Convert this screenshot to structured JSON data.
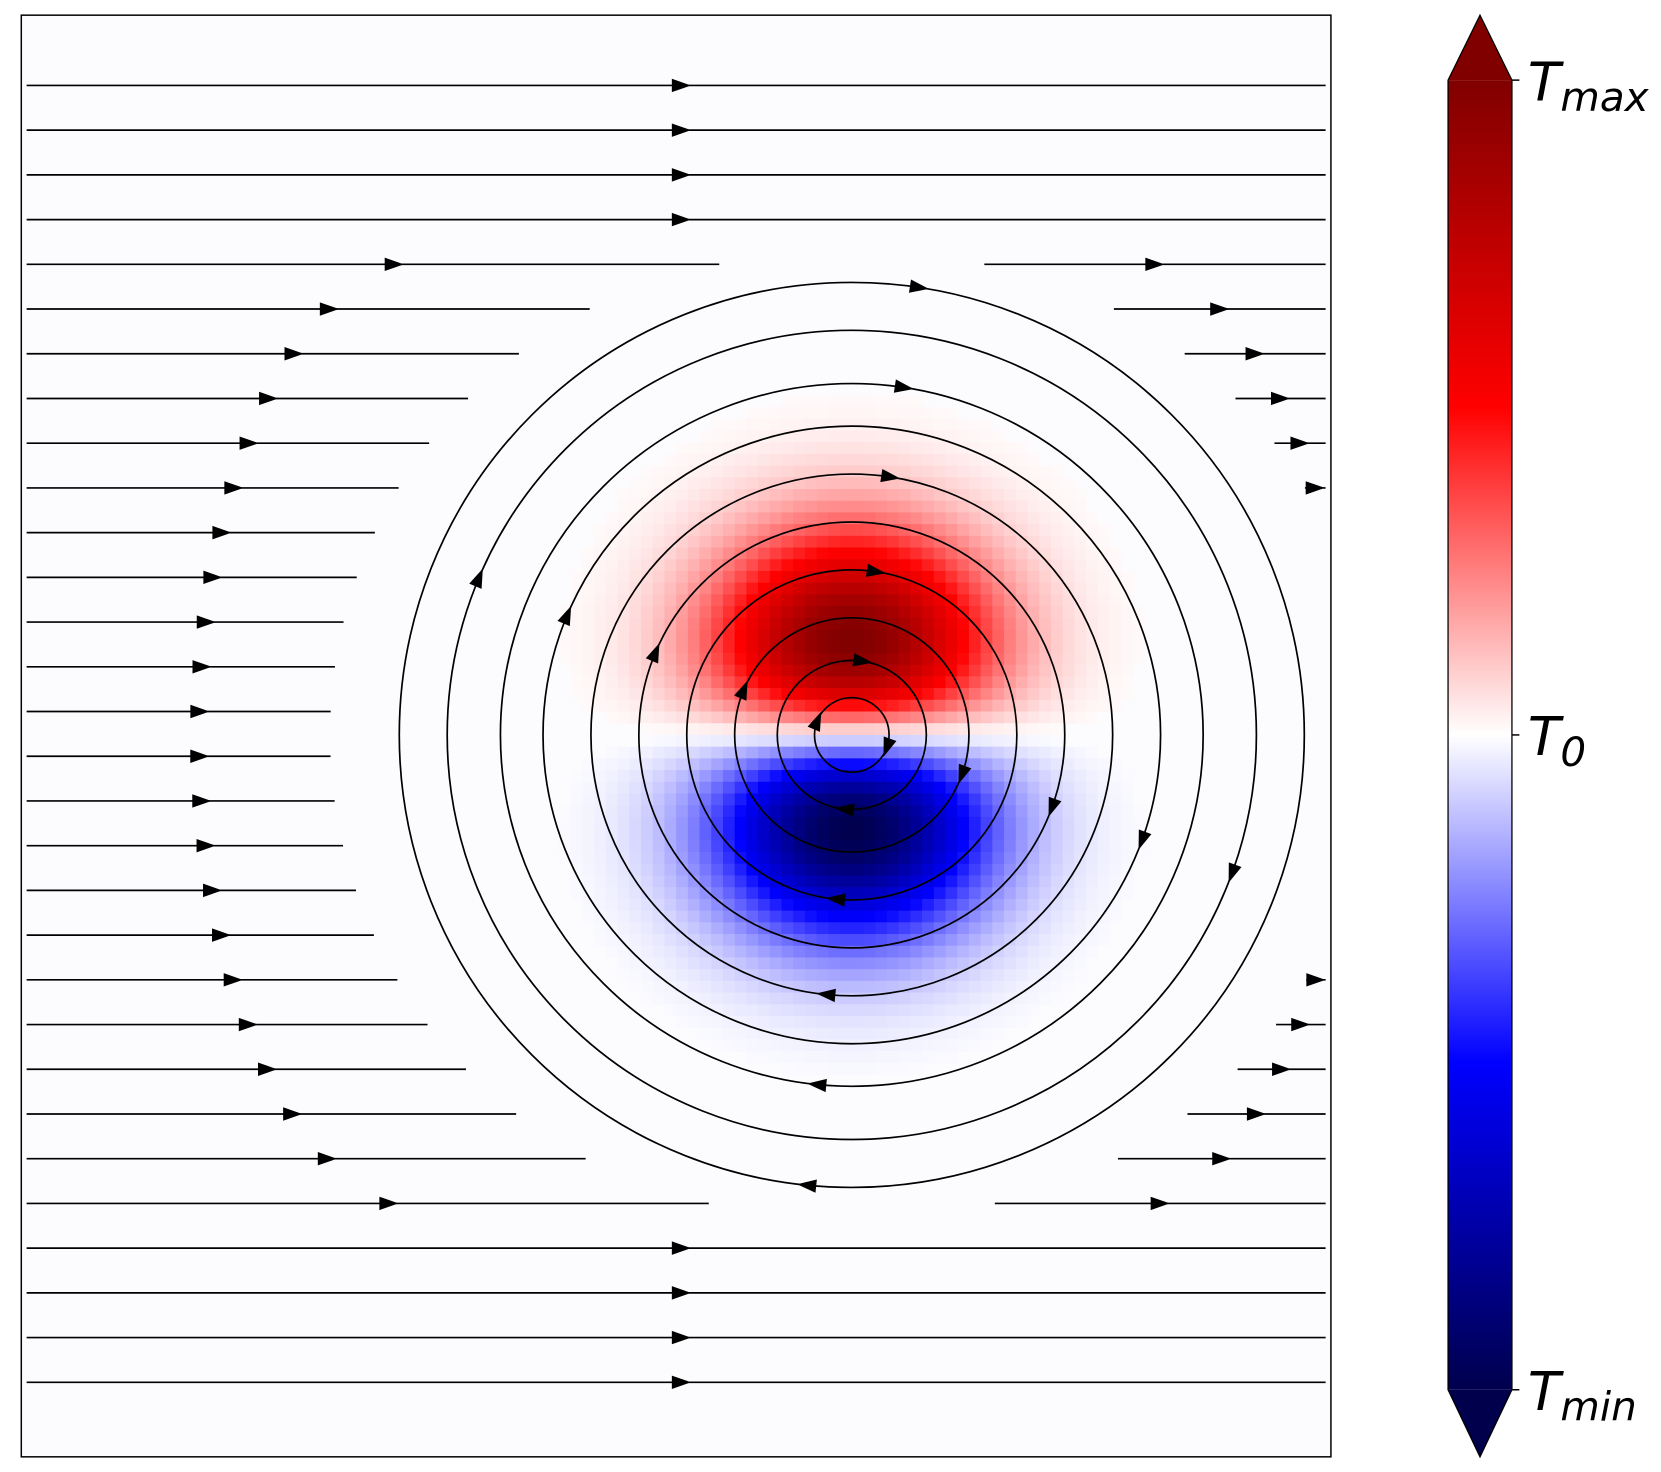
{
  "chart_data": {
    "type": "streamplot",
    "colorbar": {
      "labels": [
        {
          "symbol": "T",
          "subscript": "max"
        },
        {
          "symbol": "T",
          "subscript": "0"
        },
        {
          "symbol": "T",
          "subscript": "min"
        }
      ]
    }
  }
}
